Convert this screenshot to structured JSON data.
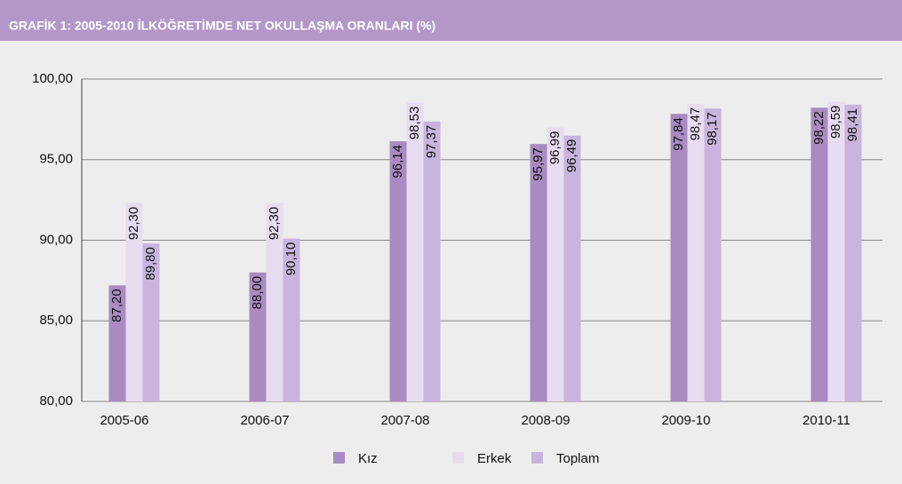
{
  "chart_data": {
    "type": "bar",
    "title": "GRAFİK 1: 2005-2010 İLKÖĞRETİMDE NET OKULLAŞMA ORANLARI (%)",
    "categories": [
      "2005-06",
      "2006-07",
      "2007-08",
      "2008-09",
      "2009-10",
      "2010-11"
    ],
    "series": [
      {
        "name": "Kız",
        "color": "#a98bc2",
        "values": [
          87.2,
          88.0,
          96.14,
          95.97,
          97.84,
          98.22
        ],
        "value_labels": [
          "87,20",
          "88,00",
          "96,14",
          "95,97",
          "97,84",
          "98,22"
        ]
      },
      {
        "name": "Erkek",
        "color": "#e7dcf0",
        "values": [
          92.3,
          92.3,
          98.53,
          96.99,
          98.47,
          98.59
        ],
        "value_labels": [
          "92,30",
          "92,30",
          "98,53",
          "96,99",
          "98,47",
          "98,59"
        ]
      },
      {
        "name": "Toplam",
        "color": "#c8b4dc",
        "values": [
          89.8,
          90.1,
          97.37,
          96.49,
          98.17,
          98.41
        ],
        "value_labels": [
          "89,80",
          "90,10",
          "97,37",
          "96,49",
          "98,17",
          "98,41"
        ]
      }
    ],
    "ylim": [
      80,
      100
    ],
    "yticks": [
      {
        "value": 80,
        "label": "80,00"
      },
      {
        "value": 85,
        "label": "85,00"
      },
      {
        "value": 90,
        "label": "90,00"
      },
      {
        "value": 95,
        "label": "95,00"
      },
      {
        "value": 100,
        "label": "100,00"
      }
    ],
    "grid": true,
    "legend": "bottom"
  }
}
